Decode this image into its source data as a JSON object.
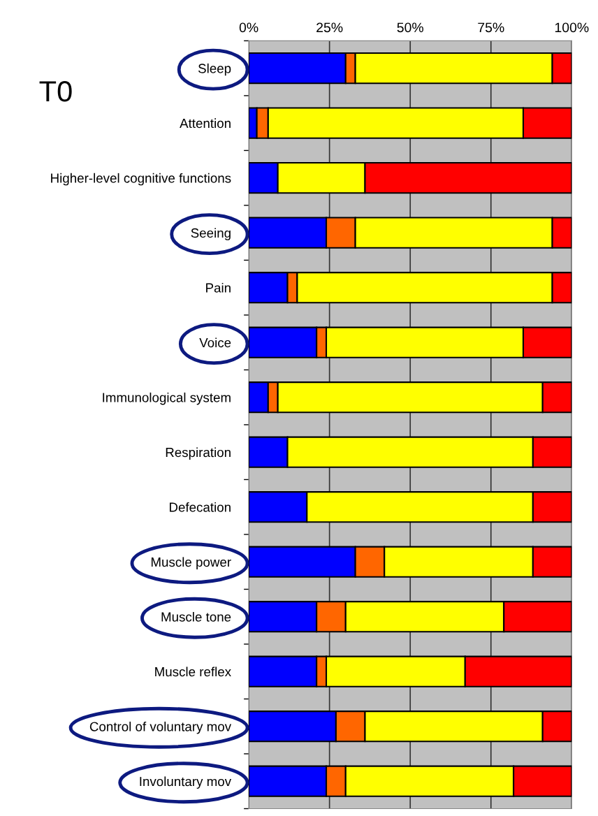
{
  "chart_data": {
    "type": "bar",
    "orientation": "horizontal",
    "stacked": true,
    "annotations": [
      "T0"
    ],
    "categories": [
      "Sleep",
      "Attention",
      "Higher-level cognitive functions",
      "Seeing",
      "Pain",
      "Voice",
      "Immunological system",
      "Respiration",
      "Defecation",
      "Muscle power",
      "Muscle tone",
      "Muscle reflex",
      "Control of voluntary mov",
      "Involuntary mov"
    ],
    "series": [
      {
        "color": "#0000ff",
        "values": [
          30,
          2.5,
          9,
          24,
          12,
          21,
          6,
          12,
          18,
          33,
          21,
          21,
          27,
          24
        ]
      },
      {
        "color": "#ff6600",
        "values": [
          3,
          3.5,
          null,
          9,
          3,
          3,
          3,
          null,
          null,
          9,
          9,
          3,
          9,
          6
        ]
      },
      {
        "color": "#ffff00",
        "values": [
          61,
          79,
          27,
          61,
          79,
          61,
          82,
          76,
          70,
          46,
          49,
          43,
          55,
          52
        ]
      },
      {
        "color": "#ff0000",
        "values": [
          6,
          15,
          64,
          6,
          6,
          15,
          9,
          12,
          12,
          12,
          21,
          33,
          9,
          18
        ]
      }
    ],
    "xlim": [
      0,
      100
    ],
    "xticks": [
      {
        "value": 0,
        "label": "0%"
      },
      {
        "value": 25,
        "label": "25%"
      },
      {
        "value": 50,
        "label": "50%"
      },
      {
        "value": 75,
        "label": "75%"
      },
      {
        "value": 100,
        "label": "100%"
      }
    ],
    "grid": "x"
  }
}
